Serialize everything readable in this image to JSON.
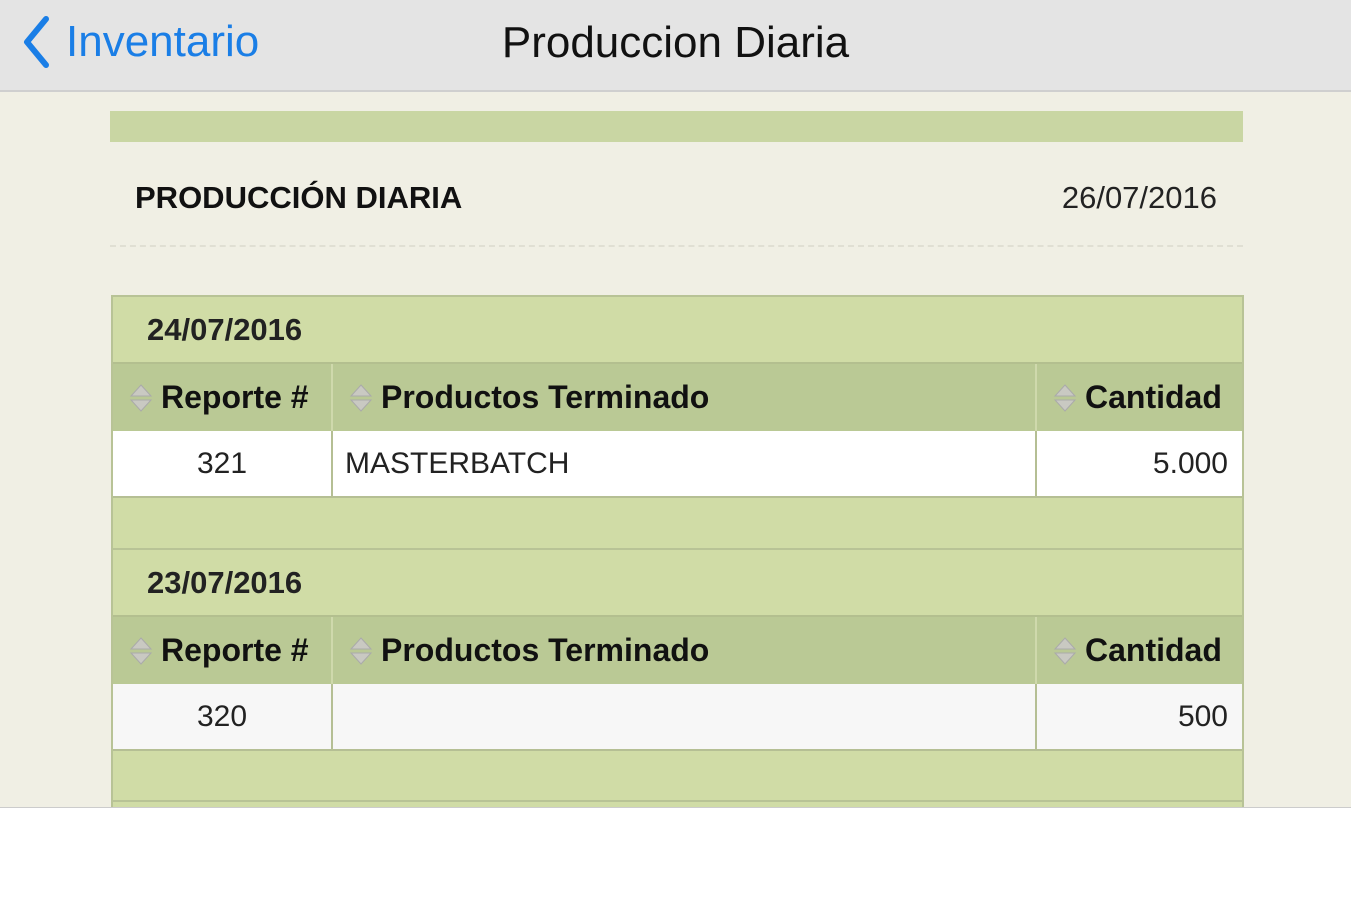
{
  "nav": {
    "back_label": "Inventario",
    "title": "Produccion Diaria"
  },
  "report": {
    "title": "PRODUCCIÓN DIARIA",
    "date": "26/07/2016"
  },
  "columns": [
    "Reporte #",
    "Productos Terminado",
    "Cantidad"
  ],
  "groups": [
    {
      "date": "24/07/2016",
      "rows": [
        {
          "reporte": "321",
          "producto": "MASTERBATCH",
          "cantidad": "5.000"
        }
      ]
    },
    {
      "date": "23/07/2016",
      "rows": [
        {
          "reporte": "320",
          "producto": "",
          "cantidad": "500"
        }
      ]
    }
  ],
  "colors": {
    "accent": "#1a7ee6",
    "group_bg": "#d0dca6",
    "header_bg": "#bac995",
    "page_bg": "#f0efe4"
  }
}
